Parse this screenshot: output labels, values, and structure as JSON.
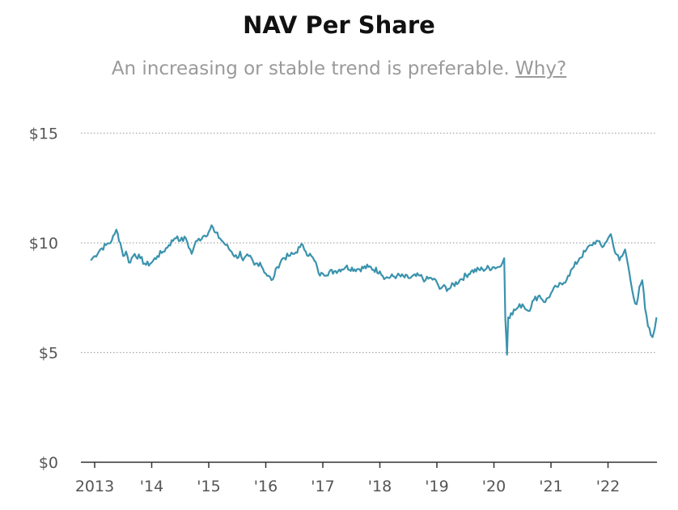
{
  "chart_data": {
    "type": "line",
    "title": "NAV Per Share",
    "subtitle": "An increasing or stable trend is preferable.",
    "subtitle_link": "Why?",
    "xlabel": "",
    "ylabel": "",
    "ylim": [
      0,
      16
    ],
    "xlim": [
      2012.9,
      2022.95
    ],
    "grid": true,
    "y_ticks": [
      {
        "value": 0,
        "label": "$0"
      },
      {
        "value": 5,
        "label": "$5"
      },
      {
        "value": 10,
        "label": "$10"
      },
      {
        "value": 15,
        "label": "$15"
      }
    ],
    "x_ticks": [
      {
        "value": 2013,
        "label": "2013"
      },
      {
        "value": 2014,
        "label": "'14"
      },
      {
        "value": 2015,
        "label": "'15"
      },
      {
        "value": 2016,
        "label": "'16"
      },
      {
        "value": 2017,
        "label": "'17"
      },
      {
        "value": 2018,
        "label": "'18"
      },
      {
        "value": 2019,
        "label": "'19"
      },
      {
        "value": 2020,
        "label": "'20"
      },
      {
        "value": 2021,
        "label": "'21"
      },
      {
        "value": 2022,
        "label": "'22"
      }
    ],
    "series": [
      {
        "name": "NAV Per Share",
        "color": "#3a93ad",
        "x": [
          2012.93,
          2013.0,
          2013.1,
          2013.2,
          2013.3,
          2013.35,
          2013.38,
          2013.45,
          2013.5,
          2013.55,
          2013.6,
          2013.7,
          2013.8,
          2013.9,
          2014.0,
          2014.1,
          2014.2,
          2014.3,
          2014.4,
          2014.45,
          2014.5,
          2014.6,
          2014.7,
          2014.75,
          2014.8,
          2014.9,
          2015.0,
          2015.05,
          2015.1,
          2015.2,
          2015.3,
          2015.4,
          2015.5,
          2015.55,
          2015.6,
          2015.7,
          2015.8,
          2015.9,
          2016.0,
          2016.1,
          2016.15,
          2016.2,
          2016.3,
          2016.4,
          2016.5,
          2016.6,
          2016.65,
          2016.7,
          2016.8,
          2016.9,
          2016.95,
          2017.0,
          2017.2,
          2017.4,
          2017.6,
          2017.8,
          2018.0,
          2018.1,
          2018.3,
          2018.5,
          2018.7,
          2018.8,
          2018.9,
          2019.0,
          2019.05,
          2019.1,
          2019.2,
          2019.4,
          2019.6,
          2019.8,
          2020.0,
          2020.1,
          2020.15,
          2020.18,
          2020.2,
          2020.22,
          2020.23,
          2020.25,
          2020.3,
          2020.4,
          2020.5,
          2020.6,
          2020.7,
          2020.8,
          2020.9,
          2021.0,
          2021.1,
          2021.2,
          2021.3,
          2021.4,
          2021.5,
          2021.6,
          2021.7,
          2021.8,
          2021.9,
          2021.95,
          2022.0,
          2022.05,
          2022.1,
          2022.2,
          2022.25,
          2022.3,
          2022.35,
          2022.4,
          2022.45,
          2022.5,
          2022.55,
          2022.6,
          2022.65,
          2022.7,
          2022.75,
          2022.78,
          2022.82,
          2022.85
        ],
        "values": [
          9.2,
          9.4,
          9.7,
          9.9,
          10.1,
          10.4,
          10.6,
          10.0,
          9.4,
          9.6,
          9.1,
          9.5,
          9.3,
          9.0,
          9.1,
          9.4,
          9.6,
          9.9,
          10.2,
          10.3,
          10.1,
          10.2,
          9.5,
          9.9,
          10.1,
          10.3,
          10.5,
          10.8,
          10.5,
          10.2,
          9.9,
          9.6,
          9.3,
          9.6,
          9.2,
          9.4,
          9.0,
          9.1,
          8.6,
          8.3,
          8.5,
          8.9,
          9.3,
          9.4,
          9.5,
          9.8,
          9.9,
          9.6,
          9.4,
          8.9,
          8.5,
          8.6,
          8.7,
          8.9,
          8.8,
          8.9,
          8.7,
          8.4,
          8.5,
          8.4,
          8.5,
          8.3,
          8.4,
          8.2,
          7.9,
          8.0,
          7.9,
          8.3,
          8.7,
          8.8,
          8.9,
          8.9,
          9.1,
          9.3,
          6.5,
          5.5,
          4.9,
          6.6,
          6.8,
          7.0,
          7.2,
          6.9,
          7.4,
          7.6,
          7.3,
          7.7,
          8.0,
          8.1,
          8.5,
          8.9,
          9.3,
          9.6,
          9.9,
          10.1,
          9.8,
          10.0,
          10.2,
          10.4,
          9.8,
          9.2,
          9.4,
          9.7,
          9.0,
          8.2,
          7.5,
          7.2,
          8.0,
          8.3,
          7.0,
          6.2,
          5.8,
          5.7,
          6.1,
          6.6
        ]
      }
    ]
  }
}
